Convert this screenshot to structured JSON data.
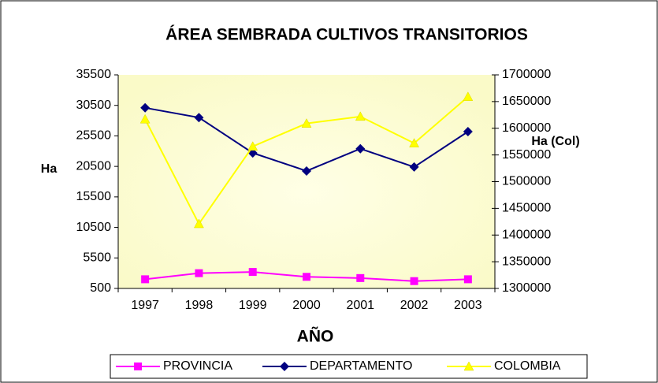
{
  "chart_data": {
    "type": "line",
    "title": "ÁREA SEMBRADA CULTIVOS TRANSITORIOS",
    "x_label": "AÑO",
    "y_label": "Ha",
    "y2_label": "Ha (Col)",
    "categories": [
      "1997",
      "1998",
      "1999",
      "2000",
      "2001",
      "2002",
      "2003"
    ],
    "series": [
      {
        "name": "PROVINCIA",
        "color": "#ff00ff",
        "marker": "square",
        "values": [
          2000,
          3000,
          3200,
          2400,
          2200,
          1700,
          2000
        ]
      },
      {
        "name": "DEPARTAMENTO",
        "color": "#000080",
        "marker": "diamond",
        "values": [
          30100,
          28500,
          22700,
          19750,
          23400,
          20400,
          26200
        ]
      },
      {
        "name": "COLOMBIA",
        "color": "#ffff00",
        "marker": "triangle",
        "axis": "y2",
        "values": [
          1617000,
          1421000,
          1566000,
          1609000,
          1622000,
          1572000,
          1659000
        ]
      }
    ],
    "ylim": [
      500,
      35500
    ],
    "yticks": [
      500,
      5500,
      10500,
      15500,
      20500,
      25500,
      30500,
      35500
    ],
    "y2lim": [
      1300000,
      1700000
    ],
    "y2ticks": [
      1300000,
      1350000,
      1400000,
      1450000,
      1500000,
      1550000,
      1600000,
      1650000,
      1700000
    ],
    "legend": "bottom"
  }
}
